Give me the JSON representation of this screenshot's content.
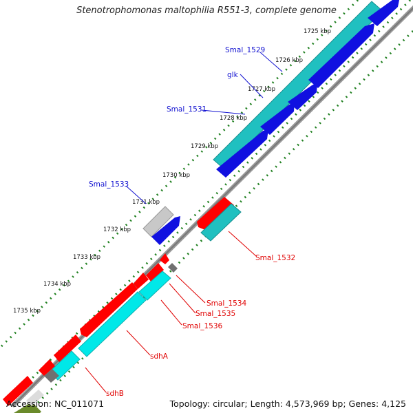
{
  "title": "Stenotrophomonas maltophilia R551-3, complete genome",
  "footer": {
    "accession": "Accession: NC_011071",
    "summary": "Topology: circular; Length: 4,573,969 bp; Genes: 4,125"
  },
  "ticks": [
    "1725 kbp",
    "1726 kbp",
    "1727 kbp",
    "1728 kbp",
    "1729 kbp",
    "1730 kbp",
    "1731 kbp",
    "1732 kbp",
    "1733 kbp",
    "1734 kbp",
    "1735 kbp"
  ],
  "forward_genes": [
    "Smal_1529",
    "glk",
    "Smal_1531",
    "Smal_1533"
  ],
  "reverse_genes": [
    "Smal_1532",
    "Smal_1534",
    "Smal_1535",
    "Smal_1536",
    "sdhA",
    "sdhB"
  ],
  "colors": {
    "forward_cds": "#1010e0",
    "forward_feature": "#20c0c0",
    "reverse_cds": "#ff0000",
    "reverse_feature": "#00e8e8",
    "gray_feature": "#c0c0c0",
    "backbone": "#808080",
    "dotted_track": "#208020"
  }
}
